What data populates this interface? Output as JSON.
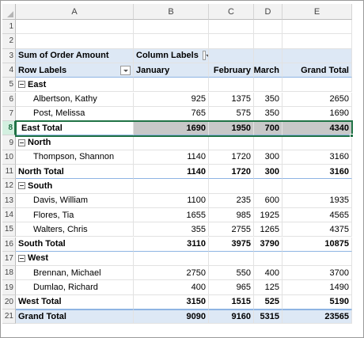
{
  "columns": [
    "A",
    "B",
    "C",
    "D",
    "E"
  ],
  "rows": [
    "1",
    "2",
    "3",
    "4",
    "5",
    "6",
    "7",
    "8",
    "9",
    "10",
    "11",
    "12",
    "13",
    "14",
    "15",
    "16",
    "17",
    "18",
    "19",
    "20",
    "21"
  ],
  "pivot": {
    "value_field": "Sum of Order Amount",
    "column_labels": "Column Labels",
    "row_labels": "Row Labels",
    "months": [
      "January",
      "February",
      "March"
    ],
    "grand_total_label": "Grand Total",
    "east": {
      "label": "East",
      "items": [
        {
          "name": "Albertson, Kathy",
          "v": [
            "925",
            "1375",
            "350",
            "2650"
          ]
        },
        {
          "name": "Post, Melissa",
          "v": [
            "765",
            "575",
            "350",
            "1690"
          ]
        }
      ],
      "total_label": "East Total",
      "total": [
        "1690",
        "1950",
        "700",
        "4340"
      ]
    },
    "north": {
      "label": "North",
      "items": [
        {
          "name": "Thompson, Shannon",
          "v": [
            "1140",
            "1720",
            "300",
            "3160"
          ]
        }
      ],
      "total_label": "North Total",
      "total": [
        "1140",
        "1720",
        "300",
        "3160"
      ]
    },
    "south": {
      "label": "South",
      "items": [
        {
          "name": "Davis, William",
          "v": [
            "1100",
            "235",
            "600",
            "1935"
          ]
        },
        {
          "name": "Flores, Tia",
          "v": [
            "1655",
            "985",
            "1925",
            "4565"
          ]
        },
        {
          "name": "Walters, Chris",
          "v": [
            "355",
            "2755",
            "1265",
            "4375"
          ]
        }
      ],
      "total_label": "South Total",
      "total": [
        "3110",
        "3975",
        "3790",
        "10875"
      ]
    },
    "west": {
      "label": "West",
      "items": [
        {
          "name": "Brennan, Michael",
          "v": [
            "2750",
            "550",
            "400",
            "3700"
          ]
        },
        {
          "name": "Dumlao, Richard",
          "v": [
            "400",
            "965",
            "125",
            "1490"
          ]
        }
      ],
      "total_label": "West Total",
      "total": [
        "3150",
        "1515",
        "525",
        "5190"
      ]
    },
    "grand_total": [
      "9090",
      "9160",
      "5315",
      "23565"
    ]
  },
  "colors": {
    "selection": "#217346",
    "pivot_header_fill": "#dde8f5",
    "selected_row_fill": "#c8c8c8"
  }
}
